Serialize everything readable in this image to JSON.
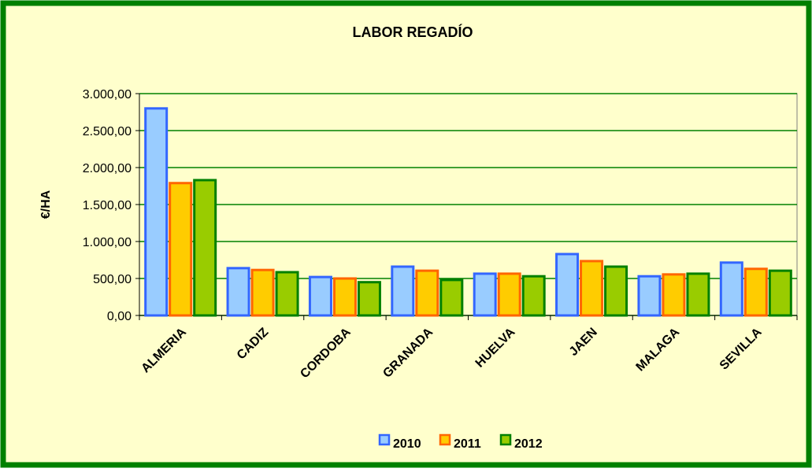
{
  "chart_data": {
    "type": "bar",
    "title": "LABOR REGADÍO",
    "ylabel": "€/HA",
    "categories": [
      "ALMERIA",
      "CADIZ",
      "CORDOBA",
      "GRANADA",
      "HUELVA",
      "JAEN",
      "MALAGA",
      "SEVILLA"
    ],
    "series": [
      {
        "name": "2010",
        "color": "#99ccff",
        "border_color": "#3366ff",
        "values": [
          2800,
          640,
          520,
          660,
          565,
          830,
          530,
          715
        ]
      },
      {
        "name": "2011",
        "color": "#ffcc00",
        "border_color": "#ff6600",
        "values": [
          1790,
          615,
          500,
          605,
          565,
          735,
          555,
          630
        ]
      },
      {
        "name": "2012",
        "color": "#99cc00",
        "border_color": "#008000",
        "values": [
          1830,
          585,
          450,
          480,
          530,
          660,
          565,
          605
        ]
      }
    ],
    "ylim": [
      0,
      3000
    ],
    "yticks": [
      {
        "value": 0,
        "label": "0,00"
      },
      {
        "value": 500,
        "label": "500,00"
      },
      {
        "value": 1000,
        "label": "1.000,00"
      },
      {
        "value": 1500,
        "label": "1.500,00"
      },
      {
        "value": 2000,
        "label": "2.000,00"
      },
      {
        "value": 2500,
        "label": "2.500,00"
      },
      {
        "value": 3000,
        "label": "3.000,00"
      }
    ],
    "grid": true,
    "grid_color": "#008000",
    "legend": "bottom"
  }
}
